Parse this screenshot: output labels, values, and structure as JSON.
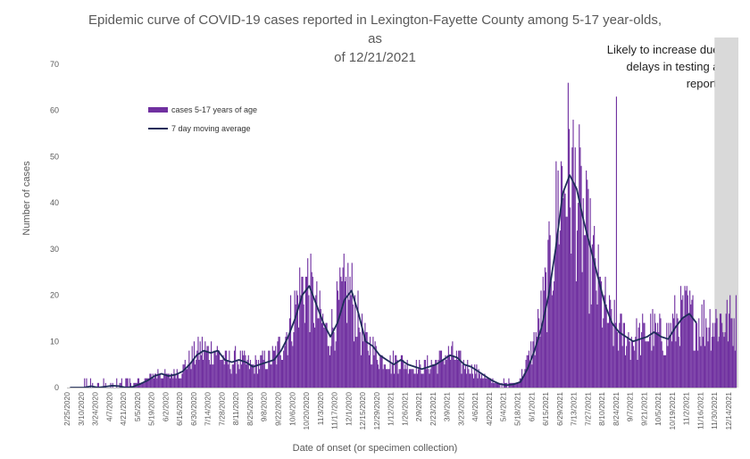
{
  "chart_data": {
    "type": "bar",
    "title_line1": "Epidemic curve of COVID-19 cases reported in Lexington-Fayette County among 5-17 year-olds, as",
    "title_line2": "of 12/21/2021",
    "ylabel": "Number of cases",
    "xlabel": "Date of onset (or specimen collection)",
    "annotation": "Likely to increase due to delays in testing and reporting",
    "ylim": [
      0,
      70
    ],
    "yticks": [
      0,
      10,
      20,
      30,
      40,
      50,
      60,
      70
    ],
    "x_start": "2/25/2020",
    "x_end": "12/21/2021",
    "shaded_region": [
      "11/30/2021",
      "12/21/2021"
    ],
    "grid": false,
    "legend_position": "upper-left",
    "colors": {
      "bar": "#7030a0",
      "line": "#1f2d5a",
      "shade": "#d9d9d9"
    },
    "xtick_labels": [
      "2/25/2020",
      "3/10/2020",
      "3/24/2020",
      "4/7/2020",
      "4/21/2020",
      "5/5/2020",
      "5/19/2020",
      "6/2/2020",
      "6/16/2020",
      "6/30/2020",
      "7/14/2020",
      "7/28/2020",
      "8/11/2020",
      "8/25/2020",
      "9/8/2020",
      "9/22/2020",
      "10/6/2020",
      "10/20/2020",
      "11/3/2020",
      "11/17/2020",
      "12/1/2020",
      "12/15/2020",
      "12/29/2020",
      "1/12/2021",
      "1/26/2021",
      "2/9/2021",
      "2/23/2021",
      "3/9/2021",
      "3/23/2021",
      "4/6/2021",
      "4/20/2021",
      "5/4/2021",
      "5/18/2021",
      "6/1/2021",
      "6/15/2021",
      "6/29/2021",
      "7/13/2021",
      "7/27/2021",
      "8/10/2021",
      "8/24/2021",
      "9/7/2021",
      "9/21/2021",
      "10/5/2021",
      "10/19/2021",
      "11/2/2021",
      "11/16/2021",
      "11/30/2021",
      "12/14/2021"
    ],
    "series": [
      {
        "name": "cases 5-17 years of age",
        "kind": "bar",
        "weekly_daily_average": [
          0,
          0,
          0,
          0.3,
          0,
          0.2,
          0.4,
          0.3,
          0,
          0.2,
          0.8,
          1.5,
          2.5,
          3,
          2.5,
          2.8,
          3.5,
          5,
          7,
          8,
          7.5,
          8,
          6,
          5.5,
          6,
          5.5,
          4.5,
          5,
          5.5,
          6,
          8,
          11,
          15,
          20,
          22,
          18,
          14,
          11,
          14,
          19,
          21,
          16,
          10,
          9,
          7,
          6,
          5,
          6,
          5,
          4.5,
          4,
          4.5,
          5,
          6,
          7,
          6.5,
          5,
          4.5,
          3.5,
          2.5,
          1.5,
          0.8,
          0.5,
          0.7,
          1.2,
          4,
          8,
          13,
          20,
          30,
          42,
          46,
          43,
          36,
          30,
          24,
          18,
          14,
          12,
          11,
          10,
          10.5,
          11,
          12,
          11,
          10.5,
          13,
          15,
          16,
          14
        ],
        "peak_day": {
          "date": "8/24/2021",
          "value": 63
        }
      },
      {
        "name": "7 day moving average",
        "kind": "line",
        "weekly_values": [
          0,
          0,
          0,
          0.3,
          0,
          0.2,
          0.4,
          0.3,
          0,
          0.2,
          0.8,
          1.5,
          2.5,
          3,
          2.5,
          2.8,
          3.5,
          5,
          7,
          8,
          7.5,
          8,
          6,
          5.5,
          6,
          5.5,
          4.5,
          5,
          5.5,
          6,
          8,
          11,
          15,
          20,
          22,
          18,
          14,
          11,
          14,
          19,
          21,
          16,
          10,
          9,
          7,
          6,
          5,
          6,
          5,
          4.5,
          4,
          4.5,
          5,
          6,
          7,
          6.5,
          5,
          4.5,
          3.5,
          2.5,
          1.5,
          0.8,
          0.5,
          0.7,
          1.2,
          4,
          8,
          13,
          20,
          30,
          42,
          46,
          43,
          36,
          30,
          24,
          18,
          14,
          12,
          11,
          10,
          10.5,
          11,
          12,
          11,
          10.5,
          13,
          15,
          16,
          14
        ]
      }
    ]
  }
}
